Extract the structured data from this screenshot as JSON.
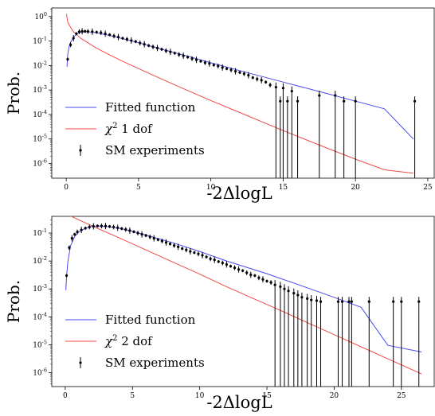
{
  "chart_data": [
    {
      "type": "scatter",
      "title": "",
      "xlabel": "-2ΔlogL",
      "ylabel": "Prob.",
      "xlim": [
        -1,
        25.5
      ],
      "ylim_log10": [
        -6.6,
        0.35
      ],
      "yscale": "log",
      "grid": false,
      "legend_position": "lower-left",
      "x_ticks": [
        0,
        5,
        10,
        15,
        20,
        25
      ],
      "y_ticks": [
        {
          "base": "10",
          "exp": "0",
          "value": 1
        },
        {
          "base": "10",
          "exp": "-1",
          "value": 0.1
        },
        {
          "base": "10",
          "exp": "-2",
          "value": 0.01
        },
        {
          "base": "10",
          "exp": "-3",
          "value": 0.001
        },
        {
          "base": "10",
          "exp": "-4",
          "value": 0.0001
        },
        {
          "base": "10",
          "exp": "-5",
          "value": 1e-05
        },
        {
          "base": "10",
          "exp": "-6",
          "value": 1e-06
        }
      ],
      "legend": [
        {
          "label": "Fitted function",
          "kind": "line",
          "color": "#4a4af0"
        },
        {
          "label_prefix": "χ",
          "label_sup": "2",
          "label_suffix": " 1 dof",
          "kind": "line",
          "color": "#f04a4a"
        },
        {
          "label": "SM experiments",
          "kind": "errorbar",
          "color": "#000000"
        }
      ],
      "series": [
        {
          "name": "Fitted function",
          "kind": "fit_curve",
          "color": "#4a4af0",
          "x": [
            0.05,
            0.1,
            0.2,
            0.3,
            0.5,
            0.7,
            1.0,
            1.5,
            2,
            3,
            4,
            5,
            6,
            8,
            10,
            12,
            15,
            18,
            20,
            22,
            24
          ],
          "y": [
            0.009,
            0.028,
            0.06,
            0.09,
            0.14,
            0.19,
            0.23,
            0.24,
            0.22,
            0.17,
            0.12,
            0.085,
            0.058,
            0.028,
            0.013,
            0.0062,
            0.0021,
            0.00072,
            0.00035,
            0.00017,
            1e-05
          ]
        },
        {
          "name": "χ2 1 dof",
          "kind": "reference_curve",
          "color": "#f04a4a",
          "x": [
            0.02,
            0.05,
            0.1,
            0.2,
            0.5,
            1,
            2,
            3,
            4,
            5,
            6,
            8,
            10,
            12,
            15,
            18,
            20,
            22,
            24
          ],
          "y": [
            1.3,
            0.9,
            0.6,
            0.45,
            0.24,
            0.13,
            0.055,
            0.027,
            0.014,
            0.0075,
            0.004,
            0.0012,
            0.00037,
            0.00012,
            2.2e-05,
            4.3e-06,
            1.5e-06,
            5.5e-07,
            4e-07
          ]
        },
        {
          "name": "SM experiments",
          "kind": "errorbar",
          "color": "#000000",
          "points": [
            {
              "x": 0.1,
              "y": 0.018
            },
            {
              "x": 0.3,
              "y": 0.07
            },
            {
              "x": 0.5,
              "y": 0.13
            },
            {
              "x": 0.7,
              "y": 0.2
            },
            {
              "x": 0.9,
              "y": 0.24
            },
            {
              "x": 1.1,
              "y": 0.25
            },
            {
              "x": 1.3,
              "y": 0.25
            },
            {
              "x": 1.5,
              "y": 0.245
            },
            {
              "x": 1.8,
              "y": 0.24
            },
            {
              "x": 2.1,
              "y": 0.23
            },
            {
              "x": 2.4,
              "y": 0.22
            },
            {
              "x": 2.7,
              "y": 0.2
            },
            {
              "x": 3.0,
              "y": 0.18
            },
            {
              "x": 3.3,
              "y": 0.16
            },
            {
              "x": 3.6,
              "y": 0.145
            },
            {
              "x": 3.9,
              "y": 0.13
            },
            {
              "x": 4.2,
              "y": 0.118
            },
            {
              "x": 4.5,
              "y": 0.105
            },
            {
              "x": 4.8,
              "y": 0.095
            },
            {
              "x": 5.1,
              "y": 0.083
            },
            {
              "x": 5.4,
              "y": 0.074
            },
            {
              "x": 5.7,
              "y": 0.065
            },
            {
              "x": 6.0,
              "y": 0.058
            },
            {
              "x": 6.3,
              "y": 0.052
            },
            {
              "x": 6.6,
              "y": 0.046
            },
            {
              "x": 6.9,
              "y": 0.04
            },
            {
              "x": 7.2,
              "y": 0.036
            },
            {
              "x": 7.5,
              "y": 0.032
            },
            {
              "x": 7.8,
              "y": 0.028
            },
            {
              "x": 8.1,
              "y": 0.025
            },
            {
              "x": 8.4,
              "y": 0.022
            },
            {
              "x": 8.7,
              "y": 0.019
            },
            {
              "x": 9.0,
              "y": 0.017
            },
            {
              "x": 9.3,
              "y": 0.015
            },
            {
              "x": 9.6,
              "y": 0.013
            },
            {
              "x": 9.9,
              "y": 0.012
            },
            {
              "x": 10.2,
              "y": 0.0105
            },
            {
              "x": 10.5,
              "y": 0.0095
            },
            {
              "x": 10.8,
              "y": 0.0083
            },
            {
              "x": 11.1,
              "y": 0.0074
            },
            {
              "x": 11.4,
              "y": 0.0066
            },
            {
              "x": 11.7,
              "y": 0.0058
            },
            {
              "x": 12.0,
              "y": 0.0052
            },
            {
              "x": 12.3,
              "y": 0.0046
            },
            {
              "x": 12.6,
              "y": 0.004
            },
            {
              "x": 12.9,
              "y": 0.0032
            },
            {
              "x": 13.2,
              "y": 0.0028
            },
            {
              "x": 13.5,
              "y": 0.0025
            },
            {
              "x": 13.8,
              "y": 0.0021
            },
            {
              "x": 14.1,
              "y": 0.0016
            },
            {
              "x": 14.5,
              "y": 0.0013
            },
            {
              "x": 14.8,
              "y": 0.00035
            },
            {
              "x": 15.0,
              "y": 0.0012
            },
            {
              "x": 15.3,
              "y": 0.00035
            },
            {
              "x": 15.6,
              "y": 0.0009
            },
            {
              "x": 16.0,
              "y": 0.00035
            },
            {
              "x": 17.5,
              "y": 0.0006
            },
            {
              "x": 18.6,
              "y": 0.0006
            },
            {
              "x": 19.2,
              "y": 0.00035
            },
            {
              "x": 20.0,
              "y": 0.00035
            },
            {
              "x": 24.1,
              "y": 0.00035
            }
          ]
        }
      ]
    },
    {
      "type": "scatter",
      "title": "",
      "xlabel": "-2ΔlogL",
      "ylabel": "Prob.",
      "xlim": [
        -1,
        27.5
      ],
      "ylim_log10": [
        -6.5,
        -0.4
      ],
      "yscale": "log",
      "grid": false,
      "legend_position": "lower-left",
      "x_ticks": [
        0,
        5,
        10,
        15,
        20,
        25
      ],
      "y_ticks": [
        {
          "base": "10",
          "exp": "-1",
          "value": 0.1
        },
        {
          "base": "10",
          "exp": "-2",
          "value": 0.01
        },
        {
          "base": "10",
          "exp": "-3",
          "value": 0.001
        },
        {
          "base": "10",
          "exp": "-4",
          "value": 0.0001
        },
        {
          "base": "10",
          "exp": "-5",
          "value": 1e-05
        },
        {
          "base": "10",
          "exp": "-6",
          "value": 1e-06
        }
      ],
      "legend": [
        {
          "label": "Fitted function",
          "kind": "line",
          "color": "#4a4af0"
        },
        {
          "label_prefix": "χ",
          "label_sup": "2",
          "label_suffix": " 2 dof",
          "kind": "line",
          "color": "#f04a4a"
        },
        {
          "label": "SM experiments",
          "kind": "errorbar",
          "color": "#000000"
        }
      ],
      "series": [
        {
          "name": "Fitted function",
          "kind": "fit_curve",
          "color": "#4a4af0",
          "x": [
            0.05,
            0.1,
            0.2,
            0.4,
            0.7,
            1.0,
            1.5,
            2,
            2.5,
            3,
            4,
            5,
            6,
            8,
            10,
            12,
            15,
            18,
            20,
            22,
            24,
            26.5
          ],
          "y": [
            0.0009,
            0.003,
            0.01,
            0.035,
            0.075,
            0.11,
            0.15,
            0.175,
            0.18,
            0.175,
            0.15,
            0.115,
            0.085,
            0.045,
            0.022,
            0.01,
            0.0035,
            0.0011,
            0.0005,
            0.00022,
            9.5e-06,
            5.5e-06
          ]
        },
        {
          "name": "χ2 2 dof",
          "kind": "reference_curve",
          "color": "#f04a4a",
          "x": [
            0,
            2,
            4,
            6,
            8,
            10,
            12,
            14,
            16,
            18,
            20,
            22,
            24,
            26.5
          ],
          "y": [
            0.5,
            0.18,
            0.068,
            0.025,
            0.0092,
            0.0034,
            0.0012,
            0.00045,
            0.00017,
            6.2e-05,
            2.3e-05,
            8.4e-06,
            3.1e-06,
            9e-07
          ]
        },
        {
          "name": "SM experiments",
          "kind": "errorbar",
          "color": "#000000",
          "points": [
            {
              "x": 0.1,
              "y": 0.003
            },
            {
              "x": 0.3,
              "y": 0.03
            },
            {
              "x": 0.5,
              "y": 0.065
            },
            {
              "x": 0.7,
              "y": 0.09
            },
            {
              "x": 0.9,
              "y": 0.11
            },
            {
              "x": 1.2,
              "y": 0.13
            },
            {
              "x": 1.5,
              "y": 0.15
            },
            {
              "x": 1.8,
              "y": 0.165
            },
            {
              "x": 2.1,
              "y": 0.175
            },
            {
              "x": 2.4,
              "y": 0.18
            },
            {
              "x": 2.7,
              "y": 0.18
            },
            {
              "x": 3.0,
              "y": 0.178
            },
            {
              "x": 3.3,
              "y": 0.172
            },
            {
              "x": 3.6,
              "y": 0.165
            },
            {
              "x": 3.9,
              "y": 0.155
            },
            {
              "x": 4.2,
              "y": 0.145
            },
            {
              "x": 4.5,
              "y": 0.135
            },
            {
              "x": 4.8,
              "y": 0.123
            },
            {
              "x": 5.1,
              "y": 0.112
            },
            {
              "x": 5.4,
              "y": 0.1
            },
            {
              "x": 5.7,
              "y": 0.09
            },
            {
              "x": 6.0,
              "y": 0.082
            },
            {
              "x": 6.3,
              "y": 0.073
            },
            {
              "x": 6.6,
              "y": 0.065
            },
            {
              "x": 6.9,
              "y": 0.058
            },
            {
              "x": 7.2,
              "y": 0.052
            },
            {
              "x": 7.5,
              "y": 0.046
            },
            {
              "x": 7.8,
              "y": 0.041
            },
            {
              "x": 8.1,
              "y": 0.036
            },
            {
              "x": 8.4,
              "y": 0.032
            },
            {
              "x": 8.7,
              "y": 0.028
            },
            {
              "x": 9.0,
              "y": 0.025
            },
            {
              "x": 9.3,
              "y": 0.022
            },
            {
              "x": 9.6,
              "y": 0.02
            },
            {
              "x": 9.9,
              "y": 0.018
            },
            {
              "x": 10.2,
              "y": 0.016
            },
            {
              "x": 10.5,
              "y": 0.014
            },
            {
              "x": 10.8,
              "y": 0.012
            },
            {
              "x": 11.1,
              "y": 0.011
            },
            {
              "x": 11.4,
              "y": 0.0095
            },
            {
              "x": 11.7,
              "y": 0.0085
            },
            {
              "x": 12.0,
              "y": 0.0075
            },
            {
              "x": 12.3,
              "y": 0.0065
            },
            {
              "x": 12.6,
              "y": 0.0057
            },
            {
              "x": 12.9,
              "y": 0.005
            },
            {
              "x": 13.2,
              "y": 0.0045
            },
            {
              "x": 13.5,
              "y": 0.0038
            },
            {
              "x": 13.8,
              "y": 0.0032
            },
            {
              "x": 14.1,
              "y": 0.003
            },
            {
              "x": 14.4,
              "y": 0.0025
            },
            {
              "x": 14.7,
              "y": 0.0022
            },
            {
              "x": 15.0,
              "y": 0.0019
            },
            {
              "x": 15.3,
              "y": 0.0017
            },
            {
              "x": 15.6,
              "y": 0.0014
            },
            {
              "x": 16.0,
              "y": 0.0012
            },
            {
              "x": 16.3,
              "y": 0.001
            },
            {
              "x": 16.6,
              "y": 0.00085
            },
            {
              "x": 17.0,
              "y": 0.0007
            },
            {
              "x": 17.3,
              "y": 0.0006
            },
            {
              "x": 17.6,
              "y": 0.0005
            },
            {
              "x": 18.0,
              "y": 0.00045
            },
            {
              "x": 18.3,
              "y": 0.0004
            },
            {
              "x": 18.7,
              "y": 0.00038
            },
            {
              "x": 19.0,
              "y": 0.00035
            },
            {
              "x": 20.3,
              "y": 0.00035
            },
            {
              "x": 20.6,
              "y": 0.00035
            },
            {
              "x": 21.1,
              "y": 0.00035
            },
            {
              "x": 21.3,
              "y": 0.00035
            },
            {
              "x": 22.6,
              "y": 0.00035
            },
            {
              "x": 24.4,
              "y": 0.00035
            },
            {
              "x": 25.0,
              "y": 0.00035
            },
            {
              "x": 26.3,
              "y": 0.00035
            }
          ]
        }
      ]
    }
  ]
}
